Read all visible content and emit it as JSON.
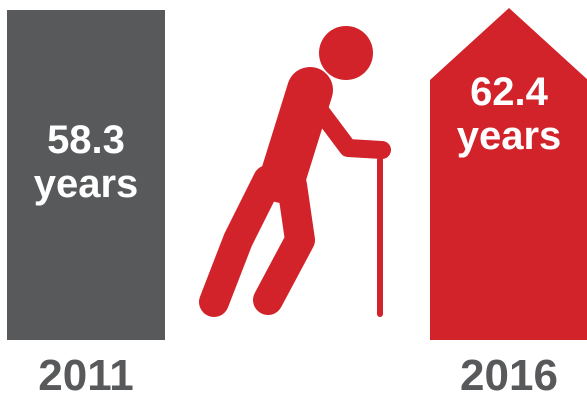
{
  "chart_data": {
    "type": "bar",
    "categories": [
      "2011",
      "2016"
    ],
    "values": [
      58.3,
      62.4
    ],
    "unit": "years",
    "value_labels": [
      "58.3",
      "62.4"
    ],
    "colors": [
      "#58595b",
      "#d2232a"
    ]
  },
  "figure": {
    "icon": "elderly-person-with-cane-icon",
    "icon_color": "#d2232a",
    "label_color": "#58595b"
  }
}
